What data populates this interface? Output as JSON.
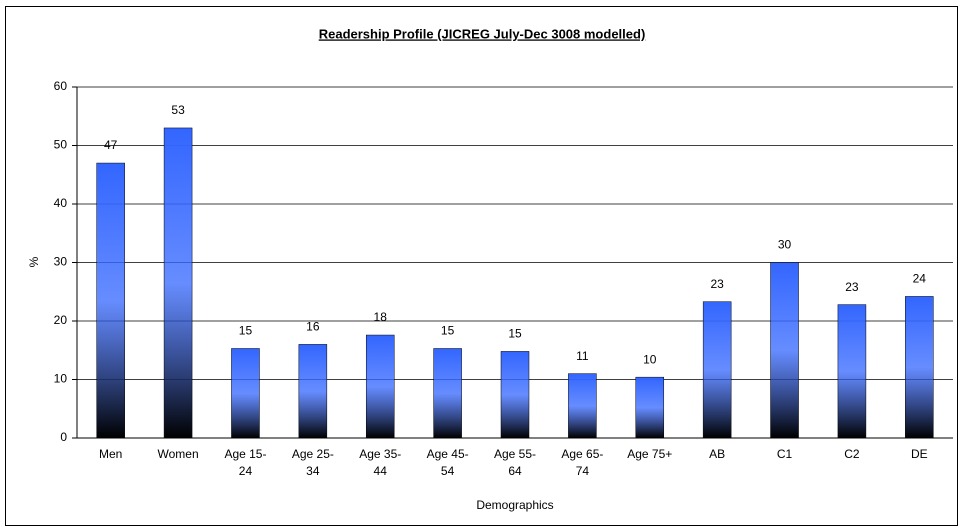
{
  "chart_data": {
    "type": "bar",
    "title": "Readership Profile (JICREG July-Dec 3008 modelled)",
    "x_label": "Demographics",
    "y_label": "%",
    "categories": [
      "Men",
      "Women",
      "Age 15-24",
      "Age 25-34",
      "Age 35-44",
      "Age 45-54",
      "Age 55-64",
      "Age 65-74",
      "Age 75+",
      "AB",
      "C1",
      "C2",
      "DE"
    ],
    "values": [
      47,
      53,
      15.3,
      16,
      17.6,
      15.3,
      14.8,
      11,
      10.4,
      23.3,
      30,
      22.8,
      24.2
    ],
    "value_labels": [
      "47",
      "53",
      "15",
      "16",
      "18",
      "15",
      "15",
      "11",
      "10",
      "23",
      "30",
      "23",
      "24"
    ],
    "color": "#3366ff",
    "ylim": [
      0,
      60
    ],
    "yticks": [
      0,
      10,
      20,
      30,
      40,
      50,
      60
    ],
    "grid": true
  }
}
